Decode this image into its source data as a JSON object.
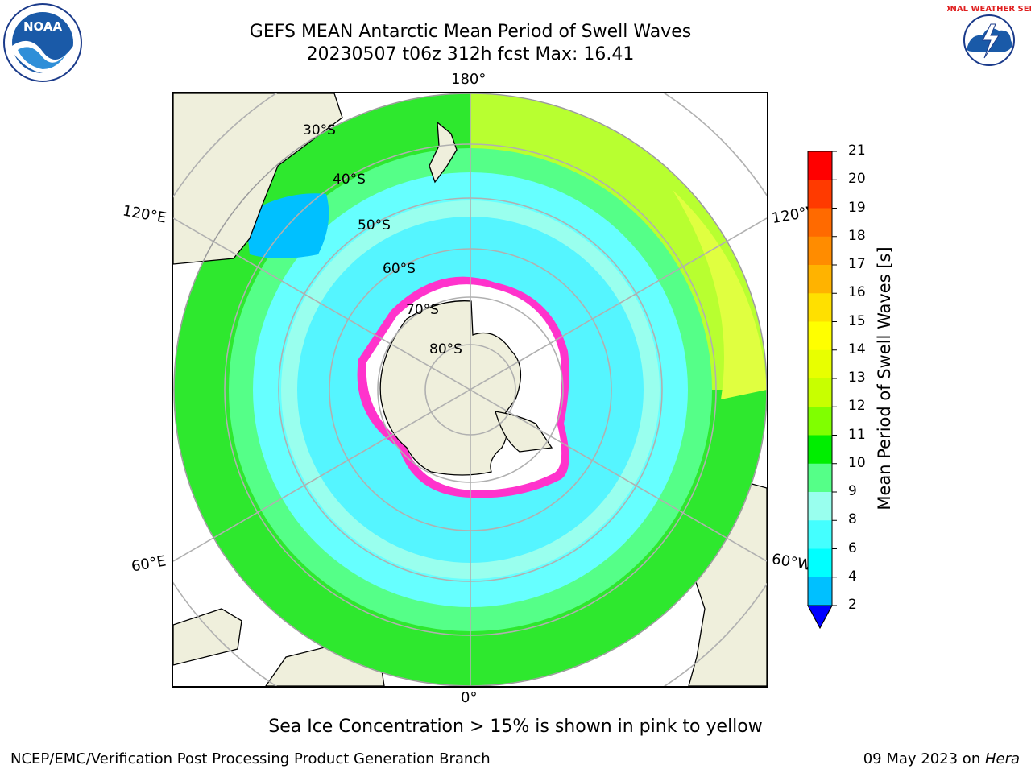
{
  "title_line1": "GEFS MEAN Antarctic Mean Period of Swell Waves",
  "title_line2": "20230507 t06z 312h fcst   Max: 16.41",
  "map": {
    "lon_labels": {
      "top": "180°",
      "bottom": "0°",
      "left_upper": "120°E",
      "left_lower": "60°E",
      "right_upper": "120°W",
      "right_lower": "60°W"
    },
    "lat_labels": [
      "30°S",
      "40°S",
      "50°S",
      "60°S",
      "70°S",
      "80°S"
    ]
  },
  "colorbar": {
    "title": "Mean Period of Swell Waves [s]",
    "ticks": [
      "21",
      "20",
      "19",
      "18",
      "17",
      "16",
      "15",
      "14",
      "13",
      "12",
      "11",
      "10",
      "9",
      "8",
      "6",
      "4",
      "2"
    ],
    "colors": [
      "#ff0000",
      "#ff3a00",
      "#ff6a00",
      "#ff8c00",
      "#ffb300",
      "#ffe000",
      "#ffff00",
      "#e8ff00",
      "#c8ff00",
      "#80ff00",
      "#00ee00",
      "#55ff88",
      "#99ffee",
      "#44ffff",
      "#00ffff",
      "#00c0ff",
      "#0060ff"
    ],
    "underflow_color": "#0000ff"
  },
  "note": "Sea Ice Concentration > 15% is shown in pink to yellow",
  "footer_left": "NCEP/EMC/Verification Post Processing Product Generation Branch",
  "footer_right_date": "09 May 2023 on ",
  "footer_right_host": "Hera",
  "logos": {
    "left": "NOAA",
    "right": "NATIONAL WEATHER SERVICE"
  }
}
